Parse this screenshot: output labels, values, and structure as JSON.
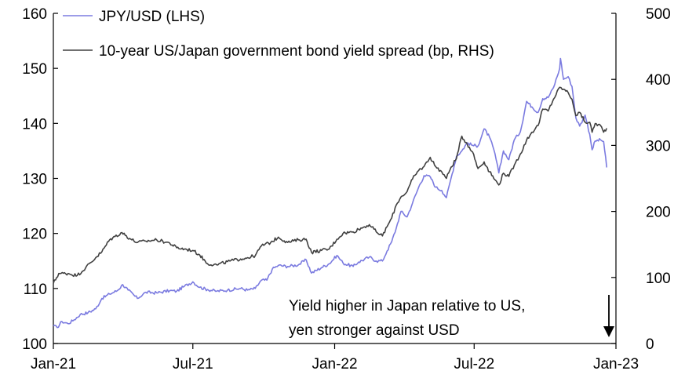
{
  "chart_data": {
    "type": "line",
    "x_ticks": [
      "Jan-21",
      "Jul-21",
      "Jan-22",
      "Jul-22",
      "Jan-23"
    ],
    "y_left": {
      "ticks": [
        100,
        110,
        120,
        130,
        140,
        150,
        160
      ],
      "range": [
        100,
        160
      ]
    },
    "y_right": {
      "ticks": [
        0,
        100,
        200,
        300,
        400,
        500
      ],
      "range": [
        0,
        500
      ]
    },
    "grid": false,
    "legend_position": "top-left",
    "x_range": [
      "2021-01-01",
      "2023-01-01"
    ],
    "series": [
      {
        "name": "JPY/USD (LHS)",
        "axis": "left",
        "color": "#7b7be0",
        "points": [
          [
            "2021-01-01",
            103.2
          ],
          [
            "2021-01-06",
            102.9
          ],
          [
            "2021-01-12",
            104.0
          ],
          [
            "2021-01-20",
            103.6
          ],
          [
            "2021-01-28",
            104.3
          ],
          [
            "2021-02-05",
            105.3
          ],
          [
            "2021-02-15",
            105.6
          ],
          [
            "2021-02-25",
            106.3
          ],
          [
            "2021-03-05",
            108.2
          ],
          [
            "2021-03-15",
            109.0
          ],
          [
            "2021-03-25",
            109.6
          ],
          [
            "2021-04-01",
            110.7
          ],
          [
            "2021-04-08",
            109.7
          ],
          [
            "2021-04-20",
            108.2
          ],
          [
            "2021-05-01",
            109.3
          ],
          [
            "2021-05-15",
            109.2
          ],
          [
            "2021-06-01",
            109.6
          ],
          [
            "2021-06-10",
            109.5
          ],
          [
            "2021-06-20",
            110.4
          ],
          [
            "2021-07-01",
            111.2
          ],
          [
            "2021-07-10",
            110.2
          ],
          [
            "2021-07-20",
            109.8
          ],
          [
            "2021-08-01",
            109.5
          ],
          [
            "2021-08-15",
            109.7
          ],
          [
            "2021-09-01",
            110.0
          ],
          [
            "2021-09-10",
            109.7
          ],
          [
            "2021-09-20",
            110.0
          ],
          [
            "2021-09-28",
            111.5
          ],
          [
            "2021-10-05",
            111.5
          ],
          [
            "2021-10-12",
            113.5
          ],
          [
            "2021-10-20",
            114.2
          ],
          [
            "2021-11-01",
            114.0
          ],
          [
            "2021-11-15",
            114.3
          ],
          [
            "2021-11-25",
            115.2
          ],
          [
            "2021-12-02",
            112.8
          ],
          [
            "2021-12-15",
            113.8
          ],
          [
            "2021-12-25",
            114.5
          ],
          [
            "2022-01-04",
            116.0
          ],
          [
            "2022-01-12",
            114.6
          ],
          [
            "2022-01-25",
            114.0
          ],
          [
            "2022-02-01",
            114.8
          ],
          [
            "2022-02-15",
            115.7
          ],
          [
            "2022-02-24",
            115.0
          ],
          [
            "2022-03-04",
            115.0
          ],
          [
            "2022-03-10",
            116.8
          ],
          [
            "2022-03-16",
            118.5
          ],
          [
            "2022-03-22",
            121.0
          ],
          [
            "2022-03-28",
            124.0
          ],
          [
            "2022-04-05",
            123.0
          ],
          [
            "2022-04-12",
            125.5
          ],
          [
            "2022-04-20",
            128.4
          ],
          [
            "2022-04-27",
            130.5
          ],
          [
            "2022-05-05",
            130.3
          ],
          [
            "2022-05-12",
            128.4
          ],
          [
            "2022-05-20",
            127.8
          ],
          [
            "2022-05-26",
            126.5
          ],
          [
            "2022-06-01",
            130.0
          ],
          [
            "2022-06-08",
            134.0
          ],
          [
            "2022-06-15",
            135.0
          ],
          [
            "2022-06-22",
            136.5
          ],
          [
            "2022-06-29",
            136.0
          ],
          [
            "2022-07-06",
            135.9
          ],
          [
            "2022-07-14",
            139.0
          ],
          [
            "2022-07-21",
            137.5
          ],
          [
            "2022-07-28",
            134.5
          ],
          [
            "2022-08-02",
            131.0
          ],
          [
            "2022-08-08",
            135.0
          ],
          [
            "2022-08-15",
            133.4
          ],
          [
            "2022-08-22",
            137.0
          ],
          [
            "2022-08-30",
            138.5
          ],
          [
            "2022-09-07",
            144.0
          ],
          [
            "2022-09-14",
            143.0
          ],
          [
            "2022-09-22",
            142.0
          ],
          [
            "2022-09-28",
            144.5
          ],
          [
            "2022-10-05",
            144.7
          ],
          [
            "2022-10-12",
            146.5
          ],
          [
            "2022-10-20",
            150.0
          ],
          [
            "2022-10-21",
            151.8
          ],
          [
            "2022-10-25",
            148.0
          ],
          [
            "2022-10-31",
            148.5
          ],
          [
            "2022-11-05",
            146.7
          ],
          [
            "2022-11-10",
            141.0
          ],
          [
            "2022-11-15",
            139.5
          ],
          [
            "2022-11-22",
            141.5
          ],
          [
            "2022-11-28",
            138.0
          ],
          [
            "2022-12-01",
            135.2
          ],
          [
            "2022-12-05",
            136.8
          ],
          [
            "2022-12-12",
            137.0
          ],
          [
            "2022-12-16",
            136.7
          ],
          [
            "2022-12-20",
            132.0
          ]
        ]
      },
      {
        "name": "10-year US/Japan government bond yield spread (bp, RHS)",
        "axis": "right",
        "color": "#404040",
        "points": [
          [
            "2021-01-01",
            91
          ],
          [
            "2021-01-08",
            106
          ],
          [
            "2021-01-20",
            106
          ],
          [
            "2021-02-01",
            103
          ],
          [
            "2021-02-12",
            115
          ],
          [
            "2021-02-25",
            130
          ],
          [
            "2021-03-05",
            139
          ],
          [
            "2021-03-15",
            157
          ],
          [
            "2021-03-22",
            162
          ],
          [
            "2021-03-31",
            168
          ],
          [
            "2021-04-10",
            159
          ],
          [
            "2021-04-20",
            153
          ],
          [
            "2021-05-01",
            155
          ],
          [
            "2021-05-15",
            157
          ],
          [
            "2021-06-01",
            152
          ],
          [
            "2021-06-10",
            145
          ],
          [
            "2021-06-20",
            143
          ],
          [
            "2021-07-01",
            141
          ],
          [
            "2021-07-10",
            134
          ],
          [
            "2021-07-20",
            121
          ],
          [
            "2021-08-01",
            119
          ],
          [
            "2021-08-15",
            124
          ],
          [
            "2021-09-01",
            128
          ],
          [
            "2021-09-10",
            130
          ],
          [
            "2021-09-20",
            133
          ],
          [
            "2021-09-28",
            148
          ],
          [
            "2021-10-10",
            153
          ],
          [
            "2021-10-20",
            161
          ],
          [
            "2021-11-01",
            153
          ],
          [
            "2021-11-15",
            157
          ],
          [
            "2021-11-25",
            158
          ],
          [
            "2021-12-02",
            138
          ],
          [
            "2021-12-15",
            141
          ],
          [
            "2021-12-25",
            143
          ],
          [
            "2022-01-04",
            158
          ],
          [
            "2022-01-12",
            167
          ],
          [
            "2022-01-25",
            169
          ],
          [
            "2022-02-01",
            173
          ],
          [
            "2022-02-15",
            180
          ],
          [
            "2022-02-24",
            169
          ],
          [
            "2022-03-04",
            163
          ],
          [
            "2022-03-10",
            177
          ],
          [
            "2022-03-16",
            190
          ],
          [
            "2022-03-22",
            210
          ],
          [
            "2022-03-28",
            222
          ],
          [
            "2022-04-05",
            230
          ],
          [
            "2022-04-12",
            249
          ],
          [
            "2022-04-20",
            262
          ],
          [
            "2022-04-27",
            268
          ],
          [
            "2022-05-05",
            282
          ],
          [
            "2022-05-12",
            268
          ],
          [
            "2022-05-20",
            260
          ],
          [
            "2022-05-26",
            250
          ],
          [
            "2022-06-01",
            267
          ],
          [
            "2022-06-08",
            280
          ],
          [
            "2022-06-15",
            314
          ],
          [
            "2022-06-22",
            302
          ],
          [
            "2022-06-29",
            290
          ],
          [
            "2022-07-06",
            265
          ],
          [
            "2022-07-14",
            275
          ],
          [
            "2022-07-21",
            260
          ],
          [
            "2022-07-28",
            248
          ],
          [
            "2022-08-02",
            240
          ],
          [
            "2022-08-08",
            258
          ],
          [
            "2022-08-15",
            253
          ],
          [
            "2022-08-22",
            270
          ],
          [
            "2022-08-30",
            287
          ],
          [
            "2022-09-07",
            308
          ],
          [
            "2022-09-14",
            320
          ],
          [
            "2022-09-22",
            330
          ],
          [
            "2022-09-28",
            355
          ],
          [
            "2022-10-05",
            352
          ],
          [
            "2022-10-12",
            370
          ],
          [
            "2022-10-20",
            388
          ],
          [
            "2022-10-25",
            385
          ],
          [
            "2022-10-31",
            380
          ],
          [
            "2022-11-05",
            370
          ],
          [
            "2022-11-10",
            345
          ],
          [
            "2022-11-15",
            350
          ],
          [
            "2022-11-22",
            335
          ],
          [
            "2022-11-28",
            335
          ],
          [
            "2022-12-01",
            320
          ],
          [
            "2022-12-05",
            333
          ],
          [
            "2022-12-12",
            330
          ],
          [
            "2022-12-16",
            320
          ],
          [
            "2022-12-20",
            326
          ]
        ]
      }
    ],
    "annotation": {
      "lines": [
        "Yield higher in Japan relative to US,",
        "yen stronger against USD"
      ],
      "arrow": "down"
    }
  }
}
